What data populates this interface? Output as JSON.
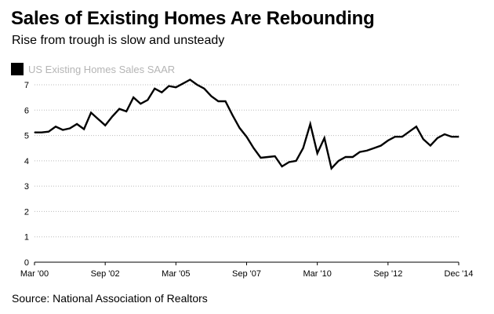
{
  "chart_data": {
    "type": "line",
    "title": "Sales of Existing Homes Are Rebounding",
    "subtitle": "Rise from trough is slow and unsteady",
    "source": "Source: National Association of Realtors",
    "legend": {
      "label": "US Existing Homes Sales SAAR",
      "placement": "top-left"
    },
    "xlabel": "",
    "ylabel": "",
    "ylim": [
      0,
      7
    ],
    "yticks": [
      0,
      1,
      2,
      3,
      4,
      5,
      6,
      7
    ],
    "xlim": [
      2000.0,
      2015.0
    ],
    "xticks": [
      {
        "value": 2000.0,
        "label": "Mar '00"
      },
      {
        "value": 2002.5,
        "label": "Sep '02"
      },
      {
        "value": 2005.0,
        "label": "Mar '05"
      },
      {
        "value": 2007.5,
        "label": "Sep '07"
      },
      {
        "value": 2010.0,
        "label": "Mar '10"
      },
      {
        "value": 2012.5,
        "label": "Sep '12"
      },
      {
        "value": 2015.0,
        "label": "Dec '14"
      }
    ],
    "grid": "horizontal dotted",
    "colors": {
      "line": "#000000",
      "grid": "#bbbbbb",
      "legend_text": "#b5b5b5"
    },
    "series": [
      {
        "name": "US Existing Homes Sales SAAR",
        "x": [
          2000.0,
          2000.25,
          2000.5,
          2000.75,
          2001.0,
          2001.25,
          2001.5,
          2001.75,
          2002.0,
          2002.25,
          2002.5,
          2002.75,
          2003.0,
          2003.25,
          2003.5,
          2003.75,
          2004.0,
          2004.25,
          2004.5,
          2004.75,
          2005.0,
          2005.25,
          2005.5,
          2005.75,
          2006.0,
          2006.25,
          2006.5,
          2006.75,
          2007.0,
          2007.25,
          2007.5,
          2007.75,
          2008.0,
          2008.25,
          2008.5,
          2008.75,
          2009.0,
          2009.25,
          2009.5,
          2009.75,
          2010.0,
          2010.25,
          2010.5,
          2010.75,
          2011.0,
          2011.25,
          2011.5,
          2011.75,
          2012.0,
          2012.25,
          2012.5,
          2012.75,
          2013.0,
          2013.25,
          2013.5,
          2013.75,
          2014.0,
          2014.25,
          2014.5,
          2014.75,
          2015.0
        ],
        "values": [
          5.12,
          5.12,
          5.15,
          5.35,
          5.22,
          5.28,
          5.45,
          5.25,
          5.9,
          5.65,
          5.4,
          5.75,
          6.05,
          5.95,
          6.5,
          6.25,
          6.4,
          6.85,
          6.7,
          6.95,
          6.9,
          7.05,
          7.2,
          7.0,
          6.85,
          6.55,
          6.35,
          6.35,
          5.8,
          5.3,
          4.95,
          4.5,
          4.12,
          4.15,
          4.18,
          3.78,
          3.95,
          4.0,
          4.5,
          5.45,
          4.3,
          4.9,
          3.7,
          4.0,
          4.15,
          4.15,
          4.35,
          4.4,
          4.5,
          4.6,
          4.8,
          4.95,
          4.95,
          5.15,
          5.35,
          4.85,
          4.6,
          4.9,
          5.05,
          4.95,
          4.95
        ]
      }
    ]
  }
}
